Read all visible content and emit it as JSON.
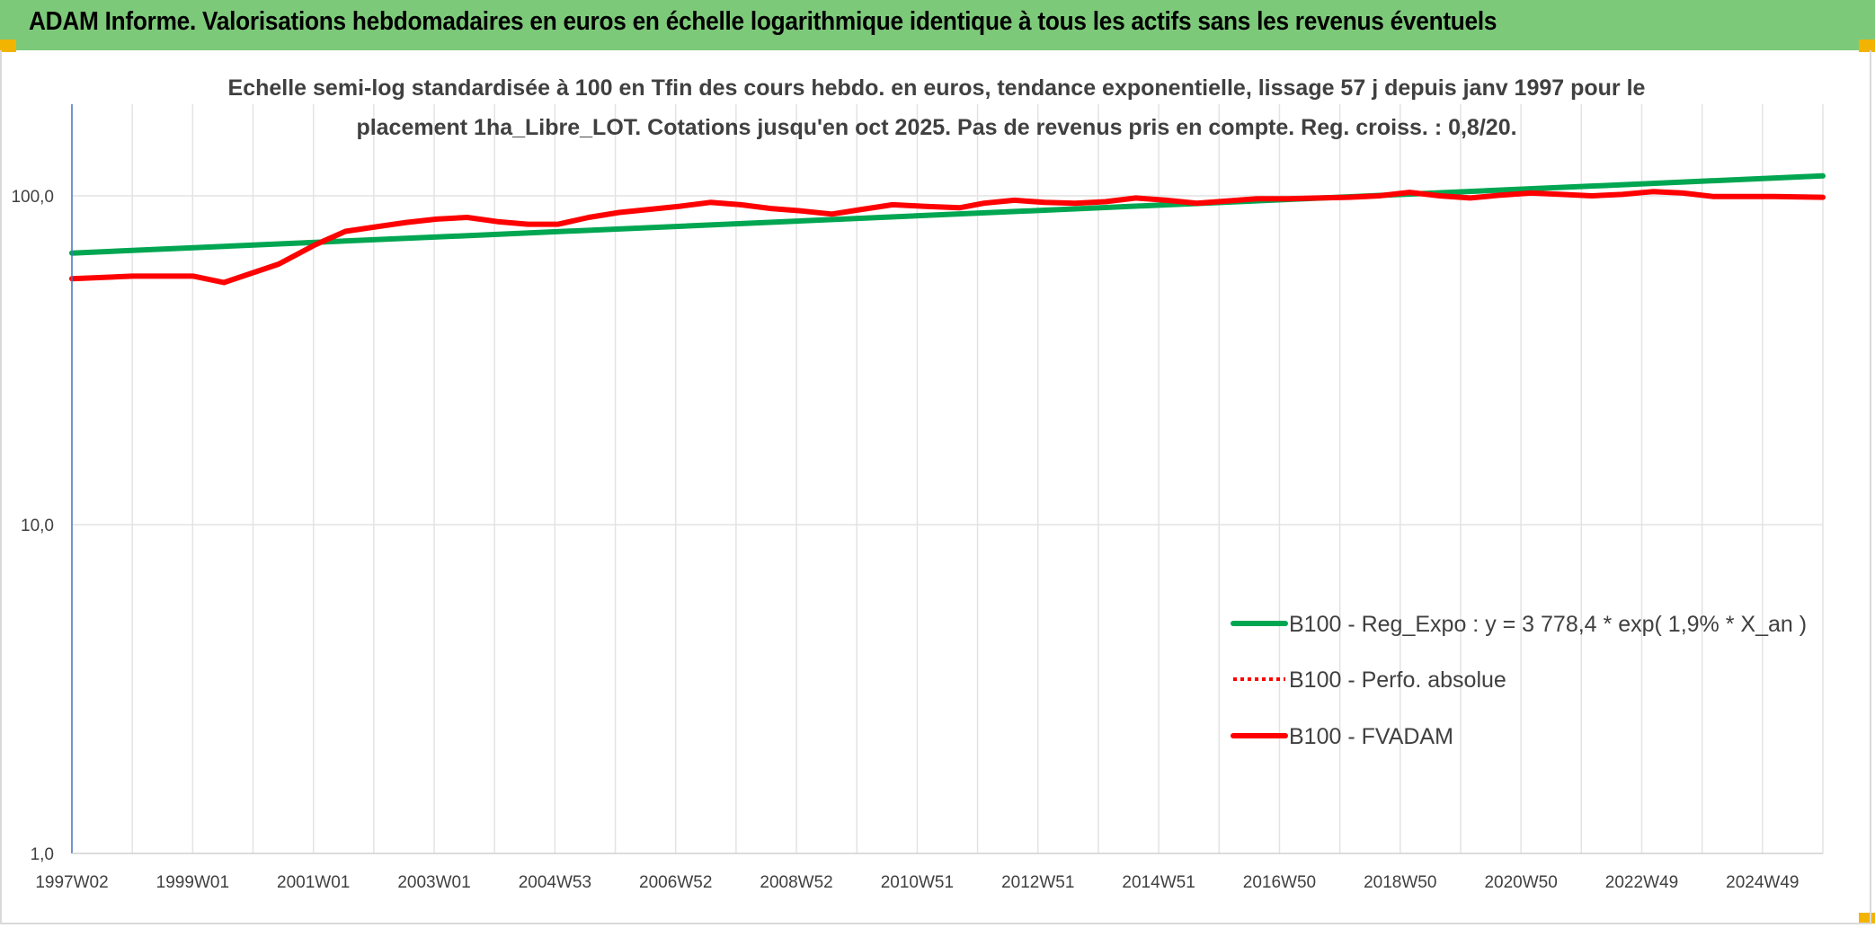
{
  "banner": {
    "title": "ADAM Informe. Valorisations hebdomadaires en euros en échelle logarithmique identique à tous les actifs sans les revenus éventuels",
    "background": "#7dc97a",
    "corner_color": "#f2b400"
  },
  "chart_data": {
    "type": "line",
    "title_lines": [
      "Echelle semi-log standardisée à 100 en Tfin des cours hebdo. en euros, tendance exponentielle, lissage 57 j depuis janv 1997 pour le",
      "placement 1ha_Libre_LOT. Cotations jusqu'en oct 2025. Pas de revenus pris en compte. Reg. croiss. : 0,8/20."
    ],
    "y_scale": "log",
    "ylim": [
      1,
      190
    ],
    "y_ticks": [
      1,
      10,
      100
    ],
    "y_tick_labels": [
      "1,0",
      "10,0",
      "100,0"
    ],
    "x_start": "1997W02",
    "x_end": "2025W42",
    "x_tick_labels": [
      "1997W02",
      "1999W01",
      "2001W01",
      "2003W01",
      "2004W53",
      "2006W52",
      "2008W52",
      "2010W51",
      "2012W51",
      "2014W51",
      "2016W50",
      "2018W50",
      "2020W50",
      "2022W49",
      "2024W49"
    ],
    "x_gridline_count": 29,
    "grid": true,
    "legend_position": "bottom-right",
    "series": [
      {
        "name": "B100 - Reg_Expo : y = 3 778,4 * exp( 1,9% *  X_an )",
        "color": "#00a651",
        "style": "solid",
        "x": [
          1997.0,
          2025.8
        ],
        "y": [
          67.0,
          115.0
        ]
      },
      {
        "name": "B100 - Perfo. absolue",
        "color": "#ff0000",
        "style": "dotted",
        "x": [],
        "y": []
      },
      {
        "name": "B100 - FVADAM",
        "color": "#ff0000",
        "style": "solid",
        "x": [
          1997.0,
          1998.0,
          1999.0,
          1999.5,
          2000.4,
          2001.0,
          2001.5,
          2002.0,
          2002.5,
          2003.0,
          2003.5,
          2004.0,
          2004.5,
          2005.0,
          2005.5,
          2006.0,
          2007.0,
          2007.5,
          2008.0,
          2008.5,
          2009.0,
          2009.5,
          2010.0,
          2010.5,
          2011.0,
          2011.6,
          2012.0,
          2012.5,
          2013.0,
          2013.5,
          2014.0,
          2014.5,
          2015.0,
          2015.5,
          2016.0,
          2016.5,
          2017.0,
          2017.5,
          2018.0,
          2018.5,
          2019.0,
          2019.5,
          2020.0,
          2020.5,
          2021.0,
          2021.5,
          2022.0,
          2022.5,
          2023.0,
          2023.5,
          2024.0,
          2024.5,
          2025.0,
          2025.8
        ],
        "y": [
          56.0,
          57.0,
          57.0,
          54.5,
          62.0,
          71.0,
          78.0,
          80.5,
          83.0,
          85.0,
          86.0,
          83.5,
          82.0,
          82.0,
          86.0,
          89.0,
          93.0,
          95.5,
          94.0,
          91.5,
          90.0,
          88.0,
          91.0,
          94.0,
          93.0,
          92.0,
          95.0,
          97.0,
          95.5,
          95.0,
          96.0,
          98.5,
          97.0,
          95.0,
          96.5,
          98.0,
          98.0,
          98.5,
          99.0,
          100.0,
          102.5,
          100.0,
          98.5,
          100.5,
          102.0,
          101.0,
          100.0,
          101.0,
          103.0,
          102.0,
          99.5,
          99.5,
          99.5,
          99.0
        ]
      }
    ]
  }
}
